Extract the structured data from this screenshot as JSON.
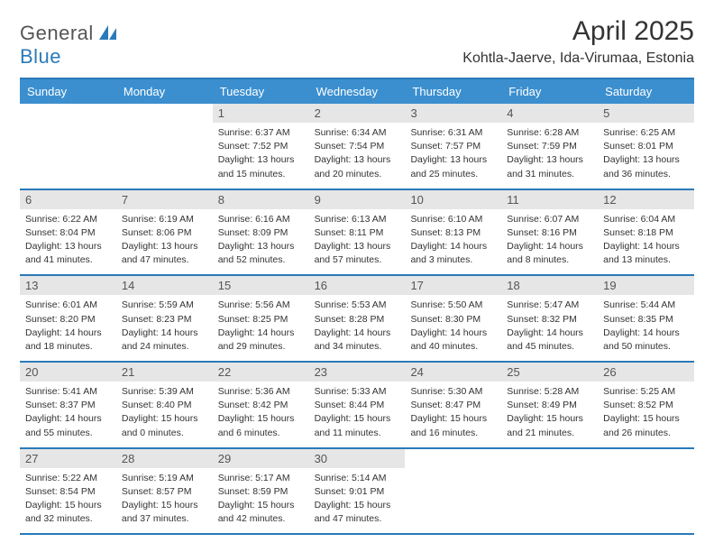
{
  "logo": {
    "word1": "General",
    "word2": "Blue"
  },
  "title": "April 2025",
  "location": "Kohtla-Jaerve, Ida-Virumaa, Estonia",
  "weekdays": [
    "Sunday",
    "Monday",
    "Tuesday",
    "Wednesday",
    "Thursday",
    "Friday",
    "Saturday"
  ],
  "colors": {
    "header_bar": "#3b8fcf",
    "rule": "#2a7ab9",
    "daynum_bg": "#e6e6e6",
    "text": "#333333",
    "logo_blue": "#2a7ab9"
  },
  "fonts": {
    "title_pt": 30,
    "location_pt": 16,
    "weekday_pt": 13,
    "daynum_pt": 13,
    "body_pt": 10.5
  },
  "weeks": [
    [
      {
        "day": "",
        "sunrise": "",
        "sunset": "",
        "daylight1": "",
        "daylight2": "",
        "empty": true
      },
      {
        "day": "",
        "sunrise": "",
        "sunset": "",
        "daylight1": "",
        "daylight2": "",
        "empty": true
      },
      {
        "day": "1",
        "sunrise": "Sunrise: 6:37 AM",
        "sunset": "Sunset: 7:52 PM",
        "daylight1": "Daylight: 13 hours",
        "daylight2": "and 15 minutes."
      },
      {
        "day": "2",
        "sunrise": "Sunrise: 6:34 AM",
        "sunset": "Sunset: 7:54 PM",
        "daylight1": "Daylight: 13 hours",
        "daylight2": "and 20 minutes."
      },
      {
        "day": "3",
        "sunrise": "Sunrise: 6:31 AM",
        "sunset": "Sunset: 7:57 PM",
        "daylight1": "Daylight: 13 hours",
        "daylight2": "and 25 minutes."
      },
      {
        "day": "4",
        "sunrise": "Sunrise: 6:28 AM",
        "sunset": "Sunset: 7:59 PM",
        "daylight1": "Daylight: 13 hours",
        "daylight2": "and 31 minutes."
      },
      {
        "day": "5",
        "sunrise": "Sunrise: 6:25 AM",
        "sunset": "Sunset: 8:01 PM",
        "daylight1": "Daylight: 13 hours",
        "daylight2": "and 36 minutes."
      }
    ],
    [
      {
        "day": "6",
        "sunrise": "Sunrise: 6:22 AM",
        "sunset": "Sunset: 8:04 PM",
        "daylight1": "Daylight: 13 hours",
        "daylight2": "and 41 minutes."
      },
      {
        "day": "7",
        "sunrise": "Sunrise: 6:19 AM",
        "sunset": "Sunset: 8:06 PM",
        "daylight1": "Daylight: 13 hours",
        "daylight2": "and 47 minutes."
      },
      {
        "day": "8",
        "sunrise": "Sunrise: 6:16 AM",
        "sunset": "Sunset: 8:09 PM",
        "daylight1": "Daylight: 13 hours",
        "daylight2": "and 52 minutes."
      },
      {
        "day": "9",
        "sunrise": "Sunrise: 6:13 AM",
        "sunset": "Sunset: 8:11 PM",
        "daylight1": "Daylight: 13 hours",
        "daylight2": "and 57 minutes."
      },
      {
        "day": "10",
        "sunrise": "Sunrise: 6:10 AM",
        "sunset": "Sunset: 8:13 PM",
        "daylight1": "Daylight: 14 hours",
        "daylight2": "and 3 minutes."
      },
      {
        "day": "11",
        "sunrise": "Sunrise: 6:07 AM",
        "sunset": "Sunset: 8:16 PM",
        "daylight1": "Daylight: 14 hours",
        "daylight2": "and 8 minutes."
      },
      {
        "day": "12",
        "sunrise": "Sunrise: 6:04 AM",
        "sunset": "Sunset: 8:18 PM",
        "daylight1": "Daylight: 14 hours",
        "daylight2": "and 13 minutes."
      }
    ],
    [
      {
        "day": "13",
        "sunrise": "Sunrise: 6:01 AM",
        "sunset": "Sunset: 8:20 PM",
        "daylight1": "Daylight: 14 hours",
        "daylight2": "and 18 minutes."
      },
      {
        "day": "14",
        "sunrise": "Sunrise: 5:59 AM",
        "sunset": "Sunset: 8:23 PM",
        "daylight1": "Daylight: 14 hours",
        "daylight2": "and 24 minutes."
      },
      {
        "day": "15",
        "sunrise": "Sunrise: 5:56 AM",
        "sunset": "Sunset: 8:25 PM",
        "daylight1": "Daylight: 14 hours",
        "daylight2": "and 29 minutes."
      },
      {
        "day": "16",
        "sunrise": "Sunrise: 5:53 AM",
        "sunset": "Sunset: 8:28 PM",
        "daylight1": "Daylight: 14 hours",
        "daylight2": "and 34 minutes."
      },
      {
        "day": "17",
        "sunrise": "Sunrise: 5:50 AM",
        "sunset": "Sunset: 8:30 PM",
        "daylight1": "Daylight: 14 hours",
        "daylight2": "and 40 minutes."
      },
      {
        "day": "18",
        "sunrise": "Sunrise: 5:47 AM",
        "sunset": "Sunset: 8:32 PM",
        "daylight1": "Daylight: 14 hours",
        "daylight2": "and 45 minutes."
      },
      {
        "day": "19",
        "sunrise": "Sunrise: 5:44 AM",
        "sunset": "Sunset: 8:35 PM",
        "daylight1": "Daylight: 14 hours",
        "daylight2": "and 50 minutes."
      }
    ],
    [
      {
        "day": "20",
        "sunrise": "Sunrise: 5:41 AM",
        "sunset": "Sunset: 8:37 PM",
        "daylight1": "Daylight: 14 hours",
        "daylight2": "and 55 minutes."
      },
      {
        "day": "21",
        "sunrise": "Sunrise: 5:39 AM",
        "sunset": "Sunset: 8:40 PM",
        "daylight1": "Daylight: 15 hours",
        "daylight2": "and 0 minutes."
      },
      {
        "day": "22",
        "sunrise": "Sunrise: 5:36 AM",
        "sunset": "Sunset: 8:42 PM",
        "daylight1": "Daylight: 15 hours",
        "daylight2": "and 6 minutes."
      },
      {
        "day": "23",
        "sunrise": "Sunrise: 5:33 AM",
        "sunset": "Sunset: 8:44 PM",
        "daylight1": "Daylight: 15 hours",
        "daylight2": "and 11 minutes."
      },
      {
        "day": "24",
        "sunrise": "Sunrise: 5:30 AM",
        "sunset": "Sunset: 8:47 PM",
        "daylight1": "Daylight: 15 hours",
        "daylight2": "and 16 minutes."
      },
      {
        "day": "25",
        "sunrise": "Sunrise: 5:28 AM",
        "sunset": "Sunset: 8:49 PM",
        "daylight1": "Daylight: 15 hours",
        "daylight2": "and 21 minutes."
      },
      {
        "day": "26",
        "sunrise": "Sunrise: 5:25 AM",
        "sunset": "Sunset: 8:52 PM",
        "daylight1": "Daylight: 15 hours",
        "daylight2": "and 26 minutes."
      }
    ],
    [
      {
        "day": "27",
        "sunrise": "Sunrise: 5:22 AM",
        "sunset": "Sunset: 8:54 PM",
        "daylight1": "Daylight: 15 hours",
        "daylight2": "and 32 minutes."
      },
      {
        "day": "28",
        "sunrise": "Sunrise: 5:19 AM",
        "sunset": "Sunset: 8:57 PM",
        "daylight1": "Daylight: 15 hours",
        "daylight2": "and 37 minutes."
      },
      {
        "day": "29",
        "sunrise": "Sunrise: 5:17 AM",
        "sunset": "Sunset: 8:59 PM",
        "daylight1": "Daylight: 15 hours",
        "daylight2": "and 42 minutes."
      },
      {
        "day": "30",
        "sunrise": "Sunrise: 5:14 AM",
        "sunset": "Sunset: 9:01 PM",
        "daylight1": "Daylight: 15 hours",
        "daylight2": "and 47 minutes."
      },
      {
        "day": "",
        "sunrise": "",
        "sunset": "",
        "daylight1": "",
        "daylight2": "",
        "empty": true
      },
      {
        "day": "",
        "sunrise": "",
        "sunset": "",
        "daylight1": "",
        "daylight2": "",
        "empty": true
      },
      {
        "day": "",
        "sunrise": "",
        "sunset": "",
        "daylight1": "",
        "daylight2": "",
        "empty": true
      }
    ]
  ]
}
